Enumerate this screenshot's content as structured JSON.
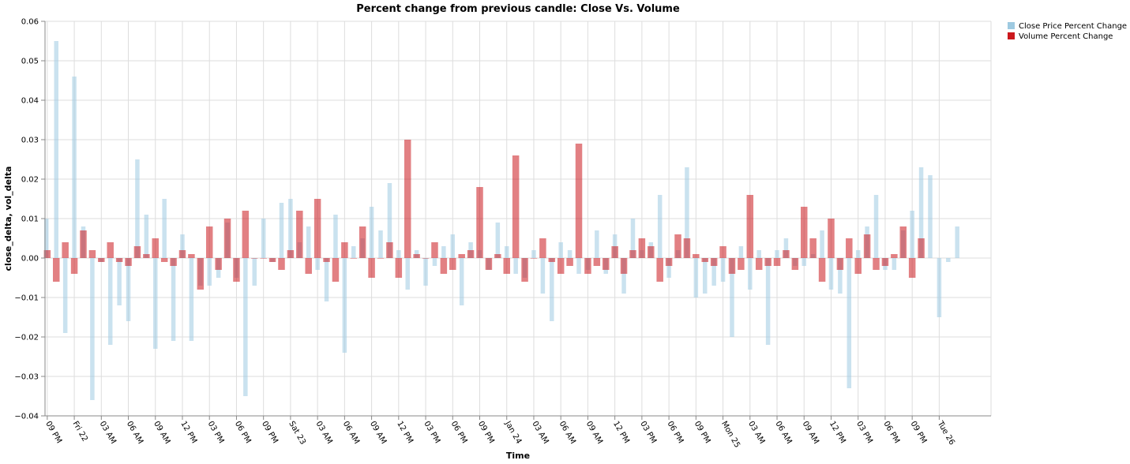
{
  "chart_data": {
    "type": "bar",
    "title": "Percent change from previous candle: Close Vs. Volume",
    "xlabel": "Time",
    "ylabel": "close_delta, vol_delta",
    "ylim": [
      -0.04,
      0.06
    ],
    "yticks": [
      -0.04,
      -0.03,
      -0.02,
      -0.01,
      0.0,
      0.01,
      0.02,
      0.03,
      0.04,
      0.05,
      0.06
    ],
    "ytick_labels": [
      "−0.04",
      "−0.03",
      "−0.02",
      "−0.01",
      "0.00",
      "0.01",
      "0.02",
      "0.03",
      "0.04",
      "0.05",
      "0.06"
    ],
    "xlim_hours": [
      -3.25,
      101.75
    ],
    "x_axis_note": "x values are hours after Fri 22 00:00",
    "xticks": [
      {
        "label": "09 PM",
        "hour": -3
      },
      {
        "label": "Fri 22",
        "hour": 0
      },
      {
        "label": "03 AM",
        "hour": 3
      },
      {
        "label": "06 AM",
        "hour": 6
      },
      {
        "label": "09 AM",
        "hour": 9
      },
      {
        "label": "12 PM",
        "hour": 12
      },
      {
        "label": "03 PM",
        "hour": 15
      },
      {
        "label": "06 PM",
        "hour": 18
      },
      {
        "label": "09 PM",
        "hour": 21
      },
      {
        "label": "Sat 23",
        "hour": 24
      },
      {
        "label": "03 AM",
        "hour": 27
      },
      {
        "label": "06 AM",
        "hour": 30
      },
      {
        "label": "09 AM",
        "hour": 33
      },
      {
        "label": "12 PM",
        "hour": 36
      },
      {
        "label": "03 PM",
        "hour": 39
      },
      {
        "label": "06 PM",
        "hour": 42
      },
      {
        "label": "09 PM",
        "hour": 45
      },
      {
        "label": "Jan 24",
        "hour": 48
      },
      {
        "label": "03 AM",
        "hour": 51
      },
      {
        "label": "06 AM",
        "hour": 54
      },
      {
        "label": "09 AM",
        "hour": 57
      },
      {
        "label": "12 PM",
        "hour": 60
      },
      {
        "label": "03 PM",
        "hour": 63
      },
      {
        "label": "06 PM",
        "hour": 66
      },
      {
        "label": "09 PM",
        "hour": 69
      },
      {
        "label": "Mon 25",
        "hour": 72
      },
      {
        "label": "03 AM",
        "hour": 75
      },
      {
        "label": "06 AM",
        "hour": 78
      },
      {
        "label": "09 AM",
        "hour": 81
      },
      {
        "label": "12 PM",
        "hour": 84
      },
      {
        "label": "03 PM",
        "hour": 87
      },
      {
        "label": "06 PM",
        "hour": 90
      },
      {
        "label": "09 PM",
        "hour": 93
      },
      {
        "label": "Tue 26",
        "hour": 96
      }
    ],
    "legend_position": "top-right",
    "grid": true,
    "series": [
      {
        "name": "Close Price Percent Change",
        "color": "#9ecae1",
        "opacity": 0.55,
        "points": [
          [
            -3.1,
            0.01
          ],
          [
            -2,
            0.055
          ],
          [
            -1,
            -0.019
          ],
          [
            0,
            0.046
          ],
          [
            1,
            0.008
          ],
          [
            2,
            -0.036
          ],
          [
            3,
            -0.001
          ],
          [
            4,
            -0.022
          ],
          [
            5,
            -0.012
          ],
          [
            6,
            -0.016
          ],
          [
            7,
            0.025
          ],
          [
            8,
            0.011
          ],
          [
            9,
            -0.023
          ],
          [
            10,
            0.015
          ],
          [
            11,
            -0.021
          ],
          [
            12,
            0.006
          ],
          [
            13,
            -0.021
          ],
          [
            14,
            -0.007
          ],
          [
            15,
            -0.007
          ],
          [
            16,
            -0.005
          ],
          [
            17,
            0.009
          ],
          [
            18,
            -0.005
          ],
          [
            19,
            -0.035
          ],
          [
            20,
            -0.007
          ],
          [
            21,
            0.01
          ],
          [
            22,
            -0.001
          ],
          [
            23,
            0.014
          ],
          [
            24,
            0.015
          ],
          [
            25,
            0.004
          ],
          [
            26,
            0.008
          ],
          [
            27,
            -0.003
          ],
          [
            28,
            -0.011
          ],
          [
            29,
            0.011
          ],
          [
            30,
            -0.024
          ],
          [
            31,
            0.003
          ],
          [
            32,
            0.005
          ],
          [
            33,
            0.013
          ],
          [
            34,
            0.007
          ],
          [
            35,
            0.019
          ],
          [
            36,
            0.002
          ],
          [
            37,
            -0.008
          ],
          [
            38,
            0.002
          ],
          [
            39,
            -0.007
          ],
          [
            40,
            -0.002
          ],
          [
            41,
            0.003
          ],
          [
            42,
            0.006
          ],
          [
            43,
            -0.012
          ],
          [
            44,
            0.004
          ],
          [
            45,
            0.002
          ],
          [
            46,
            -0.003
          ],
          [
            47,
            0.009
          ],
          [
            48,
            0.003
          ],
          [
            49,
            -0.004
          ],
          [
            50,
            -0.005
          ],
          [
            51,
            0.002
          ],
          [
            52,
            -0.009
          ],
          [
            53,
            -0.016
          ],
          [
            54,
            0.004
          ],
          [
            55,
            0.002
          ],
          [
            56,
            -0.004
          ],
          [
            57,
            -0.003
          ],
          [
            58,
            0.007
          ],
          [
            59,
            -0.004
          ],
          [
            60,
            0.006
          ],
          [
            61,
            -0.009
          ],
          [
            62,
            0.01
          ],
          [
            63,
            0.002
          ],
          [
            64,
            0.004
          ],
          [
            65,
            0.016
          ],
          [
            66,
            -0.005
          ],
          [
            67,
            0.002
          ],
          [
            68,
            0.023
          ],
          [
            69,
            -0.01
          ],
          [
            70,
            -0.009
          ],
          [
            71,
            -0.007
          ],
          [
            72,
            -0.006
          ],
          [
            73,
            -0.02
          ],
          [
            74,
            0.003
          ],
          [
            75,
            -0.008
          ],
          [
            76,
            0.002
          ],
          [
            77,
            -0.022
          ],
          [
            78,
            0.002
          ],
          [
            79,
            0.005
          ],
          [
            80,
            -0.002
          ],
          [
            81,
            -0.002
          ],
          [
            82,
            0.001
          ],
          [
            83,
            0.007
          ],
          [
            84,
            -0.008
          ],
          [
            85,
            -0.009
          ],
          [
            86,
            -0.033
          ],
          [
            87,
            0.002
          ],
          [
            88,
            0.008
          ],
          [
            89,
            0.016
          ],
          [
            90,
            -0.003
          ],
          [
            91,
            -0.003
          ],
          [
            92,
            0.007
          ],
          [
            93,
            0.012
          ],
          [
            94,
            0.023
          ],
          [
            95,
            0.021
          ],
          [
            96,
            -0.015
          ],
          [
            97,
            -0.001
          ],
          [
            98,
            0.008
          ]
        ]
      },
      {
        "name": "Volume Percent Change",
        "color": "#cb181d",
        "opacity": 0.55,
        "points": [
          [
            -3,
            0.002
          ],
          [
            -2,
            -0.006
          ],
          [
            -1,
            0.004
          ],
          [
            0,
            -0.004
          ],
          [
            1,
            0.007
          ],
          [
            2,
            0.002
          ],
          [
            3,
            -0.001
          ],
          [
            4,
            0.004
          ],
          [
            5,
            -0.001
          ],
          [
            6,
            -0.002
          ],
          [
            7,
            0.003
          ],
          [
            8,
            0.001
          ],
          [
            9,
            0.005
          ],
          [
            10,
            -0.001
          ],
          [
            11,
            -0.002
          ],
          [
            12,
            0.002
          ],
          [
            13,
            0.001
          ],
          [
            14,
            -0.008
          ],
          [
            15,
            0.008
          ],
          [
            16,
            -0.003
          ],
          [
            17,
            0.01
          ],
          [
            18,
            -0.006
          ],
          [
            19,
            0.012
          ],
          [
            20,
            0.0
          ],
          [
            21,
            0.0
          ],
          [
            22,
            -0.001
          ],
          [
            23,
            -0.003
          ],
          [
            24,
            0.002
          ],
          [
            25,
            0.012
          ],
          [
            26,
            -0.004
          ],
          [
            27,
            0.015
          ],
          [
            28,
            -0.001
          ],
          [
            29,
            -0.006
          ],
          [
            30,
            0.004
          ],
          [
            31,
            0.0
          ],
          [
            32,
            0.008
          ],
          [
            33,
            -0.005
          ],
          [
            34,
            0.0
          ],
          [
            35,
            0.004
          ],
          [
            36,
            -0.005
          ],
          [
            37,
            0.03
          ],
          [
            38,
            0.001
          ],
          [
            39,
            0.0
          ],
          [
            40,
            0.004
          ],
          [
            41,
            -0.004
          ],
          [
            42,
            -0.003
          ],
          [
            43,
            0.001
          ],
          [
            44,
            0.002
          ],
          [
            45,
            0.018
          ],
          [
            46,
            -0.003
          ],
          [
            47,
            0.001
          ],
          [
            48,
            -0.004
          ],
          [
            49,
            0.026
          ],
          [
            50,
            -0.006
          ],
          [
            51,
            0.0
          ],
          [
            52,
            0.005
          ],
          [
            53,
            -0.001
          ],
          [
            54,
            -0.004
          ],
          [
            55,
            -0.002
          ],
          [
            56,
            0.029
          ],
          [
            57,
            -0.004
          ],
          [
            58,
            -0.002
          ],
          [
            59,
            -0.003
          ],
          [
            60,
            0.003
          ],
          [
            61,
            -0.004
          ],
          [
            62,
            0.002
          ],
          [
            63,
            0.005
          ],
          [
            64,
            0.003
          ],
          [
            65,
            -0.006
          ],
          [
            66,
            -0.002
          ],
          [
            67,
            0.006
          ],
          [
            68,
            0.005
          ],
          [
            69,
            0.001
          ],
          [
            70,
            -0.001
          ],
          [
            71,
            -0.002
          ],
          [
            72,
            0.003
          ],
          [
            73,
            -0.004
          ],
          [
            74,
            -0.003
          ],
          [
            75,
            0.016
          ],
          [
            76,
            -0.003
          ],
          [
            77,
            -0.002
          ],
          [
            78,
            -0.002
          ],
          [
            79,
            0.002
          ],
          [
            80,
            -0.003
          ],
          [
            81,
            0.013
          ],
          [
            82,
            0.005
          ],
          [
            83,
            -0.006
          ],
          [
            84,
            0.01
          ],
          [
            85,
            -0.003
          ],
          [
            86,
            0.005
          ],
          [
            87,
            -0.004
          ],
          [
            88,
            0.006
          ],
          [
            89,
            -0.003
          ],
          [
            90,
            -0.002
          ],
          [
            91,
            0.001
          ],
          [
            92,
            0.008
          ],
          [
            93,
            -0.005
          ],
          [
            94,
            0.005
          ]
        ]
      }
    ]
  }
}
